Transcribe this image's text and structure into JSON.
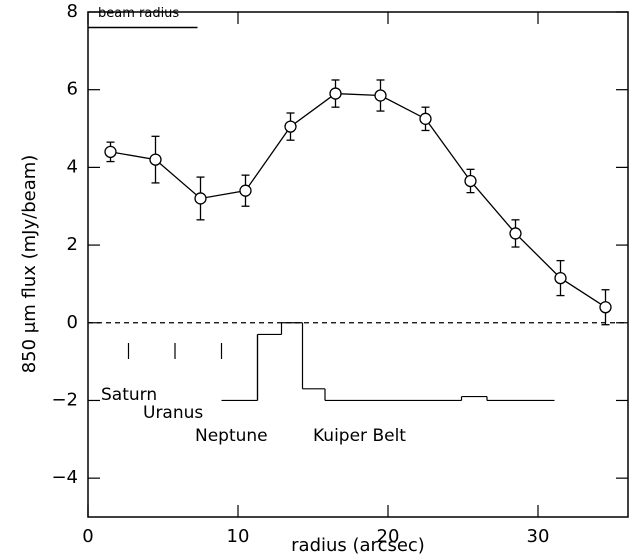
{
  "chart_data": {
    "type": "line",
    "x_label": "radius (arcsec)",
    "y_label": "850 μm flux (mJy/beam)",
    "xlim": [
      0,
      36
    ],
    "ylim": [
      -5,
      8
    ],
    "xticks": [
      0,
      10,
      20,
      30
    ],
    "yticks": [
      {
        "value": -4,
        "label": "−4"
      },
      {
        "value": -2,
        "label": "−2"
      },
      0,
      2,
      4,
      6,
      8
    ],
    "zero_line": 0,
    "series": [
      {
        "color": "#000000",
        "x": [
          1.5,
          4.5,
          7.5,
          10.5,
          13.5,
          16.5,
          19.5,
          22.5,
          25.5,
          28.5,
          31.5,
          34.5
        ],
        "values": [
          4.4,
          4.2,
          3.2,
          3.4,
          5.05,
          5.9,
          5.85,
          5.25,
          3.65,
          2.3,
          1.15,
          0.4
        ],
        "errors": [
          0.25,
          0.6,
          0.55,
          0.4,
          0.35,
          0.35,
          0.4,
          0.3,
          0.3,
          0.35,
          0.45,
          0.45
        ]
      }
    ],
    "beam": {
      "label": "beam radius",
      "y": 7.6,
      "x": [
        0,
        7.3
      ]
    },
    "markers": [
      {
        "label": "Saturn",
        "x": 2.7
      },
      {
        "label": "Uranus",
        "x": 5.8
      },
      {
        "label": "Neptune",
        "x": 8.9
      }
    ],
    "kuiper": {
      "label": "Kuiper Belt",
      "edges": [
        8.9,
        11.3,
        12.9,
        14.3,
        15.8,
        24.9,
        26.6,
        31.1
      ],
      "values": [
        -2,
        -0.3,
        0,
        -1.7,
        -2,
        -1.9,
        -2
      ]
    }
  }
}
